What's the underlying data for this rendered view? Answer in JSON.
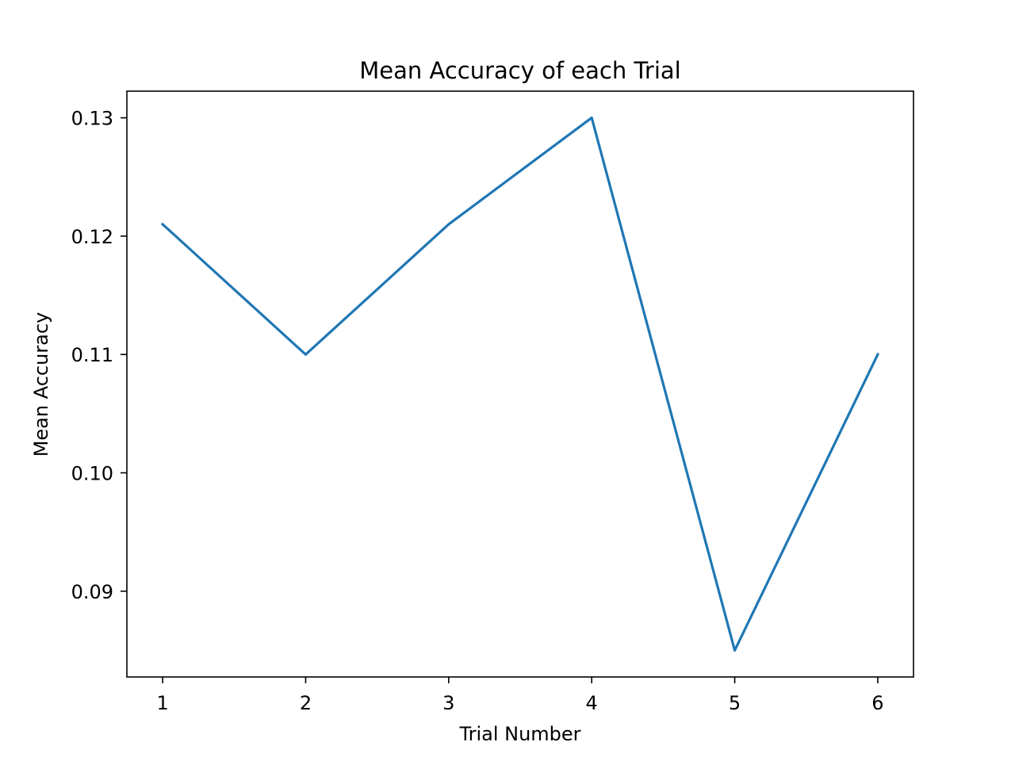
{
  "chart_data": {
    "type": "line",
    "title": "Mean Accuracy of each Trial",
    "xlabel": "Trial Number",
    "ylabel": "Mean Accuracy",
    "x": [
      1,
      2,
      3,
      4,
      5,
      6
    ],
    "series": [
      {
        "values": [
          0.121,
          0.11,
          0.121,
          0.13,
          0.085,
          0.11
        ],
        "color": "#1f77b4"
      }
    ],
    "xlim": [
      0.75,
      6.25
    ],
    "ylim": [
      0.08275,
      0.13225
    ],
    "xticks": [
      1,
      2,
      3,
      4,
      5,
      6
    ],
    "xtick_labels": [
      "1",
      "2",
      "3",
      "4",
      "5",
      "6"
    ],
    "yticks": [
      0.09,
      0.1,
      0.11,
      0.12,
      0.13
    ],
    "ytick_labels": [
      "0.09",
      "0.10",
      "0.11",
      "0.12",
      "0.13"
    ],
    "grid": false,
    "legend": "none"
  }
}
